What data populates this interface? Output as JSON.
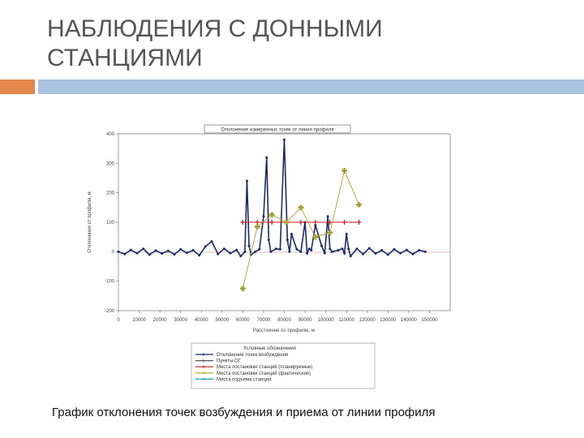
{
  "slide": {
    "title_line1": "НАБЛЮДЕНИЯ С ДОННЫМИ",
    "title_line2": "СТАНЦИЯМИ",
    "caption": "График отклонения точек возбуждения и приема от линии профиля",
    "accent_color": "#e3874a",
    "band_color": "#a9c3e0"
  },
  "chart_data": {
    "type": "line",
    "title": "Отклонение измеренных точек от линии профиля",
    "xlabel": "Расстояние по профилю, м",
    "ylabel": "Отклонение от профиля, м",
    "xlim": [
      0,
      160000
    ],
    "ylim": [
      -200,
      400
    ],
    "x_ticks": [
      "0",
      "10000",
      "20000",
      "30000",
      "40000",
      "50000",
      "60000",
      "70000",
      "80000",
      "90000",
      "100000",
      "110000",
      "120000",
      "130000",
      "140000",
      "150000"
    ],
    "y_ticks": [
      "400",
      "300",
      "200",
      "100",
      "0",
      "-100",
      "-200"
    ],
    "legend_title": "Условные обозначения",
    "legend_entries": [
      "Отклонение точек возбуждения",
      "Пункты ОГ",
      "Места постановки станций (планируемые)",
      "Места постановки станций (фактические)",
      "Места подъема станций"
    ],
    "series": [
      {
        "color": "#1c2a6b",
        "x": [
          0,
          3000,
          6000,
          9000,
          12000,
          15000,
          18000,
          21000,
          24000,
          27000,
          30000,
          33000,
          36000,
          39000,
          42000,
          45000,
          48000,
          51000,
          54000,
          57000,
          59000,
          61000,
          62000,
          63000,
          64000,
          66000,
          68000,
          70000,
          71500,
          72500,
          73500,
          76000,
          78000,
          80000,
          81500,
          82500,
          83500,
          86000,
          88000,
          90000,
          91000,
          92000,
          93000,
          95000,
          98000,
          99500,
          101000,
          102000,
          103000,
          106000,
          108000,
          109000,
          110000,
          111000,
          112000,
          115000,
          118000,
          121000,
          124000,
          127000,
          130000,
          133000,
          136000,
          139000,
          142000,
          145000,
          148000
        ],
        "y": [
          0,
          -8,
          6,
          -5,
          10,
          -10,
          4,
          -6,
          3,
          -9,
          8,
          -4,
          5,
          -12,
          18,
          35,
          -8,
          10,
          -5,
          6,
          -15,
          0,
          240,
          20,
          -10,
          0,
          8,
          120,
          320,
          40,
          0,
          10,
          8,
          380,
          40,
          0,
          60,
          8,
          0,
          100,
          -5,
          10,
          5,
          90,
          20,
          -5,
          120,
          10,
          0,
          5,
          10,
          -5,
          60,
          10,
          -15,
          10,
          -8,
          12,
          -6,
          5,
          -10,
          8,
          -5,
          6,
          -8,
          5,
          0
        ]
      },
      {
        "color": "#c8181e",
        "x": [
          60000,
          67000,
          74000,
          81000,
          88000,
          95000,
          102000,
          109000,
          116000
        ],
        "y": [
          100,
          100,
          100,
          100,
          100,
          100,
          100,
          100,
          100
        ]
      },
      {
        "color": "#a8a820",
        "x": [
          60000,
          67000,
          74000,
          81000,
          88000,
          95000,
          102000,
          109000,
          116000
        ],
        "y": [
          -125,
          85,
          125,
          100,
          150,
          50,
          65,
          275,
          160
        ]
      }
    ],
    "grid": false,
    "legend": "bottom"
  }
}
